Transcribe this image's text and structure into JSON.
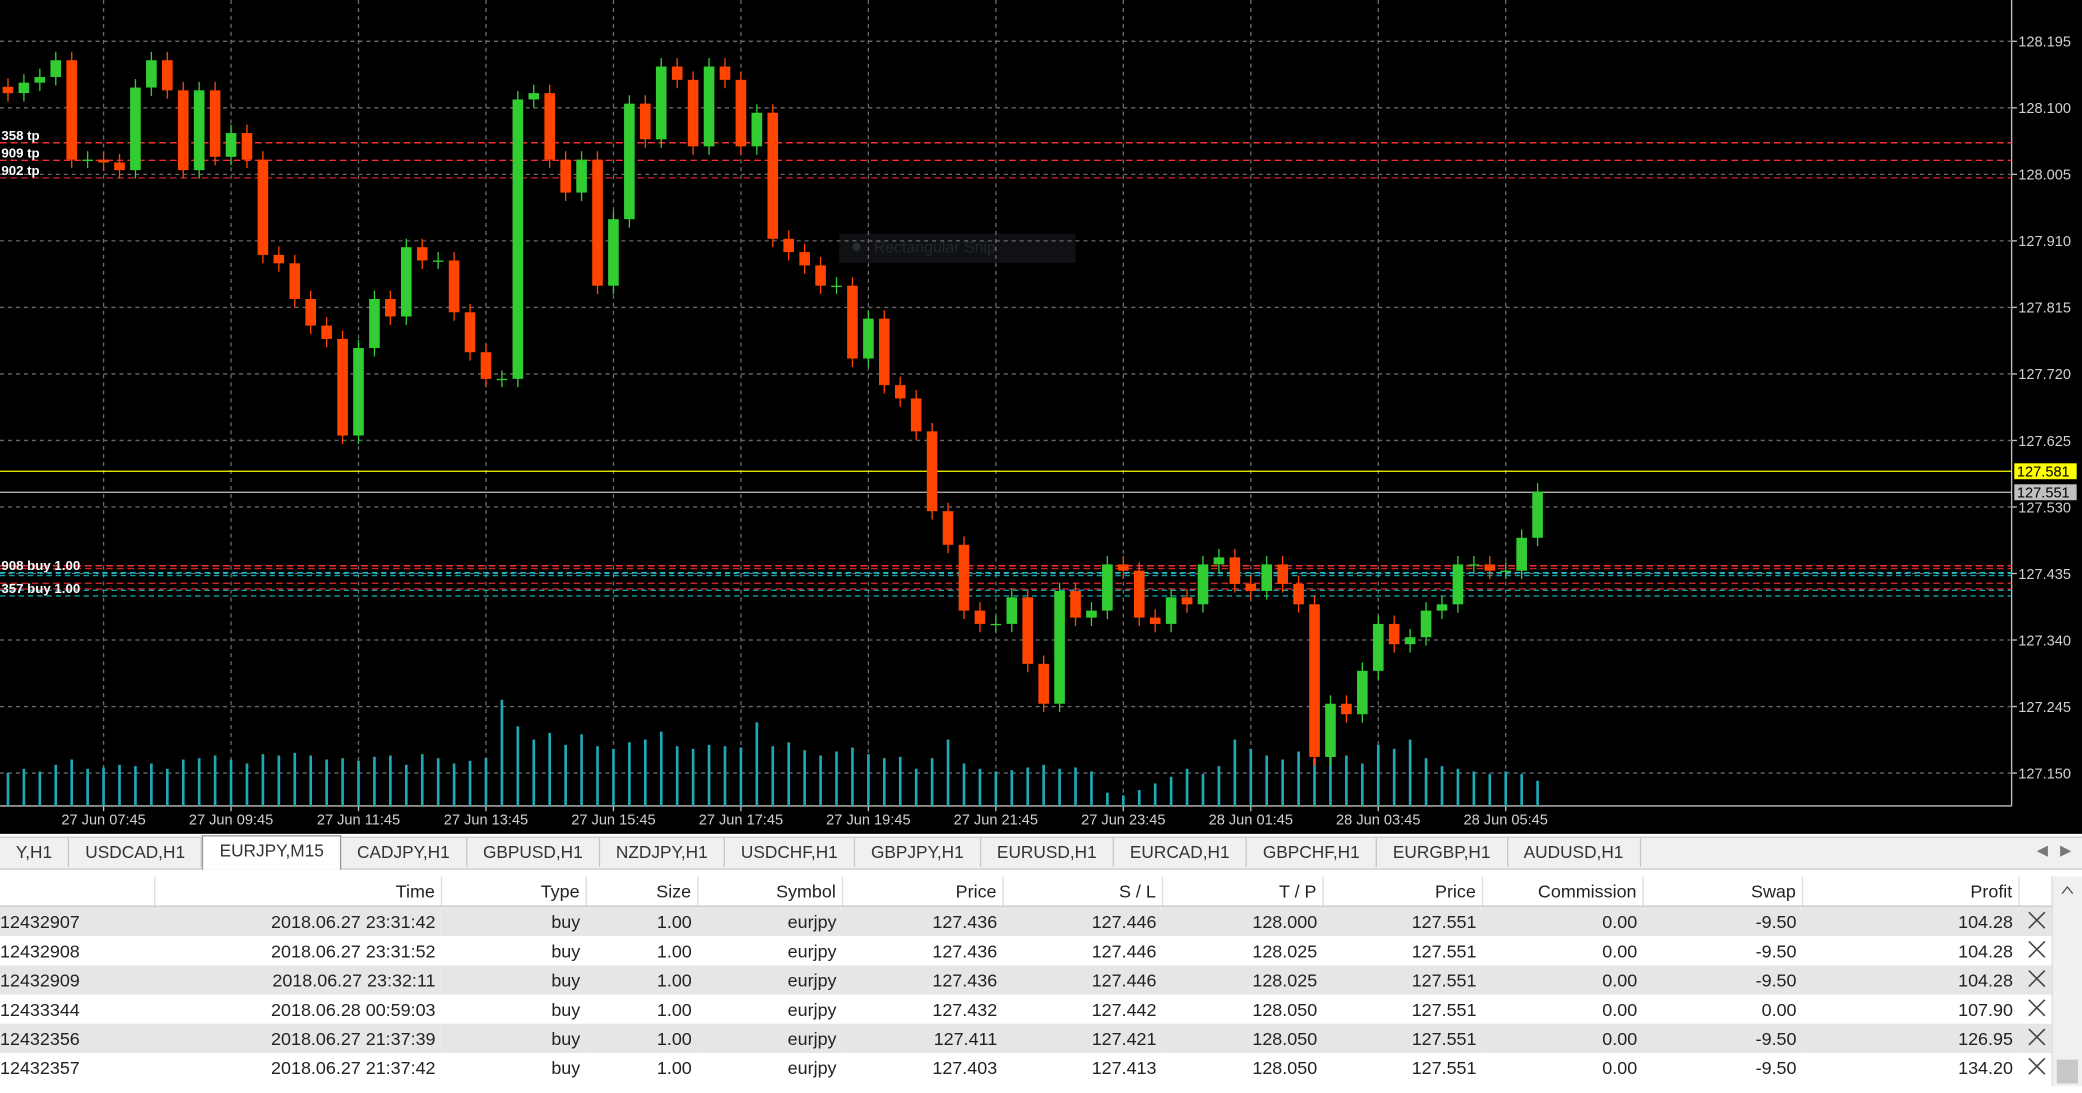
{
  "chart_data": {
    "type": "candlestick",
    "categories": [
      null,
      null,
      null,
      null,
      null,
      null,
      "27 Jun 07:45",
      null,
      null,
      null,
      null,
      null,
      null,
      null,
      "27 Jun 09:45",
      null,
      null,
      null,
      null,
      null,
      null,
      null,
      "27 Jun 11:45",
      null,
      null,
      null,
      null,
      null,
      null,
      null,
      "27 Jun 13:45",
      null,
      null,
      null,
      null,
      null,
      null,
      null,
      "27 Jun 15:45",
      null,
      null,
      null,
      null,
      null,
      null,
      null,
      "27 Jun 17:45",
      null,
      null,
      null,
      null,
      null,
      null,
      null,
      "27 Jun 19:45",
      null,
      null,
      null,
      null,
      null,
      null,
      null,
      "27 Jun 21:45",
      null,
      null,
      null,
      null,
      null,
      null,
      null,
      "27 Jun 23:45",
      null,
      null,
      null,
      null,
      null,
      null,
      null,
      "28 Jun 01:45",
      null,
      null,
      null,
      null,
      null,
      null,
      null,
      "28 Jun 03:45",
      null,
      null,
      null,
      null,
      null,
      null,
      null,
      "28 Jun 05:45",
      null,
      null
    ],
    "open": [
      128.13,
      128.121,
      128.136,
      128.144,
      128.168,
      128.026,
      128.026,
      128.022,
      128.011,
      128.129,
      128.168,
      128.125,
      128.011,
      128.125,
      128.03,
      128.064,
      128.026,
      127.89,
      127.878,
      127.827,
      127.789,
      127.77,
      127.632,
      127.757,
      127.827,
      127.802,
      127.901,
      127.882,
      127.882,
      127.808,
      127.751,
      127.713,
      127.713,
      128.112,
      128.121,
      128.026,
      127.979,
      128.026,
      127.846,
      127.941,
      128.106,
      128.055,
      128.159,
      128.14,
      128.045,
      128.159,
      128.14,
      128.045,
      128.093,
      127.913,
      127.894,
      127.875,
      127.846,
      127.846,
      127.742,
      127.799,
      127.704,
      127.685,
      127.638,
      127.524,
      127.476,
      127.382,
      127.363,
      127.363,
      127.401,
      127.306,
      127.249,
      127.41,
      127.372,
      127.382,
      127.448,
      127.439,
      127.372,
      127.363,
      127.401,
      127.391,
      127.448,
      127.458,
      127.42,
      127.41,
      127.448,
      127.42,
      127.391,
      127.173,
      127.249,
      127.234,
      127.296,
      127.363,
      127.334,
      127.344,
      127.382,
      127.391,
      127.448,
      127.448,
      127.439,
      127.439,
      127.486
    ],
    "high": [
      128.142,
      128.148,
      128.156,
      128.18,
      128.18,
      128.038,
      128.038,
      128.034,
      128.141,
      128.18,
      128.18,
      128.137,
      128.137,
      128.137,
      128.076,
      128.076,
      128.038,
      127.902,
      127.89,
      127.839,
      127.801,
      127.782,
      127.769,
      127.839,
      127.839,
      127.913,
      127.913,
      127.894,
      127.894,
      127.82,
      127.763,
      127.725,
      128.124,
      128.133,
      128.133,
      128.038,
      128.038,
      128.038,
      127.953,
      128.118,
      128.118,
      128.171,
      128.171,
      128.152,
      128.171,
      128.171,
      128.152,
      128.105,
      128.105,
      127.925,
      127.906,
      127.887,
      127.858,
      127.858,
      127.811,
      127.811,
      127.716,
      127.697,
      127.65,
      127.536,
      127.488,
      127.394,
      127.375,
      127.413,
      127.413,
      127.318,
      127.422,
      127.422,
      127.394,
      127.46,
      127.46,
      127.451,
      127.384,
      127.413,
      127.413,
      127.46,
      127.47,
      127.47,
      127.432,
      127.46,
      127.46,
      127.432,
      127.403,
      127.261,
      127.261,
      127.308,
      127.375,
      127.375,
      127.356,
      127.394,
      127.403,
      127.46,
      127.46,
      127.46,
      127.451,
      127.498,
      127.564
    ],
    "low": [
      128.109,
      128.109,
      128.124,
      128.132,
      128.014,
      128.014,
      128.01,
      127.999,
      127.999,
      128.117,
      128.113,
      127.999,
      127.999,
      128.018,
      128.018,
      128.014,
      127.878,
      127.866,
      127.815,
      127.777,
      127.758,
      127.62,
      127.62,
      127.745,
      127.79,
      127.79,
      127.87,
      127.87,
      127.796,
      127.739,
      127.701,
      127.701,
      127.701,
      128.1,
      128.014,
      127.967,
      127.967,
      127.834,
      127.834,
      127.929,
      128.043,
      128.043,
      128.128,
      128.033,
      128.033,
      128.128,
      128.033,
      128.033,
      127.901,
      127.882,
      127.863,
      127.834,
      127.834,
      127.73,
      127.73,
      127.692,
      127.673,
      127.626,
      127.512,
      127.464,
      127.37,
      127.351,
      127.351,
      127.351,
      127.294,
      127.237,
      127.237,
      127.36,
      127.36,
      127.37,
      127.427,
      127.36,
      127.351,
      127.351,
      127.379,
      127.379,
      127.436,
      127.408,
      127.398,
      127.398,
      127.408,
      127.379,
      127.161,
      127.161,
      127.222,
      127.222,
      127.284,
      127.322,
      127.322,
      127.332,
      127.37,
      127.379,
      127.436,
      127.427,
      127.427,
      127.427,
      127.474
    ],
    "close": [
      128.121,
      128.136,
      128.144,
      128.168,
      128.026,
      128.026,
      128.022,
      128.011,
      128.129,
      128.168,
      128.125,
      128.011,
      128.125,
      128.03,
      128.064,
      128.026,
      127.89,
      127.878,
      127.827,
      127.789,
      127.77,
      127.632,
      127.757,
      127.827,
      127.802,
      127.901,
      127.882,
      127.882,
      127.808,
      127.751,
      127.713,
      127.713,
      128.112,
      128.121,
      128.026,
      127.979,
      128.026,
      127.846,
      127.941,
      128.106,
      128.055,
      128.159,
      128.14,
      128.045,
      128.159,
      128.14,
      128.045,
      128.093,
      127.913,
      127.894,
      127.875,
      127.846,
      127.846,
      127.742,
      127.799,
      127.704,
      127.685,
      127.638,
      127.524,
      127.476,
      127.382,
      127.363,
      127.363,
      127.401,
      127.306,
      127.249,
      127.41,
      127.372,
      127.382,
      127.448,
      127.439,
      127.372,
      127.363,
      127.401,
      127.391,
      127.448,
      127.458,
      127.42,
      127.41,
      127.448,
      127.42,
      127.391,
      127.173,
      127.249,
      127.234,
      127.296,
      127.363,
      127.334,
      127.344,
      127.382,
      127.391,
      127.448,
      127.448,
      127.439,
      127.439,
      127.486,
      127.552
    ],
    "volume": [
      500,
      560,
      520,
      620,
      700,
      560,
      580,
      620,
      600,
      640,
      560,
      700,
      720,
      760,
      700,
      640,
      780,
      760,
      800,
      760,
      700,
      720,
      680,
      740,
      760,
      620,
      780,
      720,
      640,
      680,
      720,
      1600,
      1200,
      1000,
      1100,
      920,
      1080,
      900,
      860,
      960,
      1000,
      1120,
      900,
      860,
      920,
      900,
      880,
      1260,
      900,
      960,
      840,
      760,
      820,
      880,
      780,
      720,
      740,
      560,
      720,
      1000,
      640,
      560,
      520,
      540,
      580,
      620,
      560,
      580,
      520,
      200,
      160,
      240,
      340,
      440,
      560,
      480,
      600,
      1000,
      860,
      760,
      700,
      820,
      720,
      1100,
      760,
      640,
      920,
      860,
      1000,
      720,
      600,
      560,
      520,
      480,
      520,
      480,
      380
    ],
    "up_color": "#32cd32",
    "down_color": "#ff4500",
    "volume_color": "#1fa8b5",
    "ylim": [
      127.103,
      128.254
    ],
    "yticks": [
      128.195,
      {
        "value": 128.1,
        "label": "128.100"
      },
      128.005,
      {
        "value": 127.91,
        "label": "127.910"
      },
      127.815,
      {
        "value": 127.72,
        "label": "127.720"
      },
      127.625,
      {
        "value": 127.53,
        "label": "127.530"
      },
      127.435,
      {
        "value": 127.34,
        "label": "127.340"
      },
      127.245,
      {
        "value": 127.15,
        "label": "127.150"
      }
    ],
    "grid": true,
    "price_lines": [
      {
        "value": 127.581,
        "color": "#ffff00"
      },
      {
        "value": 127.551,
        "color": "#c0c0c0"
      }
    ],
    "order_labels": [
      {
        "label": "358 tp",
        "value": 128.05
      },
      {
        "label": "909 tp",
        "value": 128.025
      },
      {
        "label": "902 tp",
        "value": 128.0
      },
      {
        "label": "908 buy 1.00",
        "value": 127.436
      },
      {
        "label": "357 buy 1.00",
        "value": 127.403
      }
    ],
    "overlay_text": "Rectangular Snip"
  },
  "tabs": {
    "items": [
      "Y,H1",
      "USDCAD,H1",
      "EURJPY,M15",
      "CADJPY,H1",
      "GBPUSD,H1",
      "NZDJPY,H1",
      "USDCHF,H1",
      "GBPJPY,H1",
      "EURUSD,H1",
      "EURCAD,H1",
      "GBPCHF,H1",
      "EURGBP,H1",
      "AUDUSD,H1"
    ],
    "active": 2
  },
  "table": {
    "columns": [
      "Time",
      "Type",
      "Size",
      "Symbol",
      "Price",
      "S / L",
      "T / P",
      "Price",
      "Commission",
      "Swap",
      "Profit"
    ],
    "rows": [
      [
        "12432907",
        "2018.06.27 23:31:42",
        "buy",
        "1.00",
        "eurjpy",
        "127.436",
        "127.446",
        "128.000",
        "127.551",
        "0.00",
        "-9.50",
        "104.28"
      ],
      [
        "12432908",
        "2018.06.27 23:31:52",
        "buy",
        "1.00",
        "eurjpy",
        "127.436",
        "127.446",
        "128.025",
        "127.551",
        "0.00",
        "-9.50",
        "104.28"
      ],
      [
        "12432909",
        "2018.06.27 23:32:11",
        "buy",
        "1.00",
        "eurjpy",
        "127.436",
        "127.446",
        "128.025",
        "127.551",
        "0.00",
        "-9.50",
        "104.28"
      ],
      [
        "12433344",
        "2018.06.28 00:59:03",
        "buy",
        "1.00",
        "eurjpy",
        "127.432",
        "127.442",
        "128.050",
        "127.551",
        "0.00",
        "0.00",
        "107.90"
      ],
      [
        "12432356",
        "2018.06.27 21:37:39",
        "buy",
        "1.00",
        "eurjpy",
        "127.411",
        "127.421",
        "128.050",
        "127.551",
        "0.00",
        "-9.50",
        "126.95"
      ],
      [
        "12432357",
        "2018.06.27 21:37:42",
        "buy",
        "1.00",
        "eurjpy",
        "127.403",
        "127.413",
        "128.050",
        "127.551",
        "0.00",
        "-9.50",
        "134.20"
      ]
    ]
  }
}
